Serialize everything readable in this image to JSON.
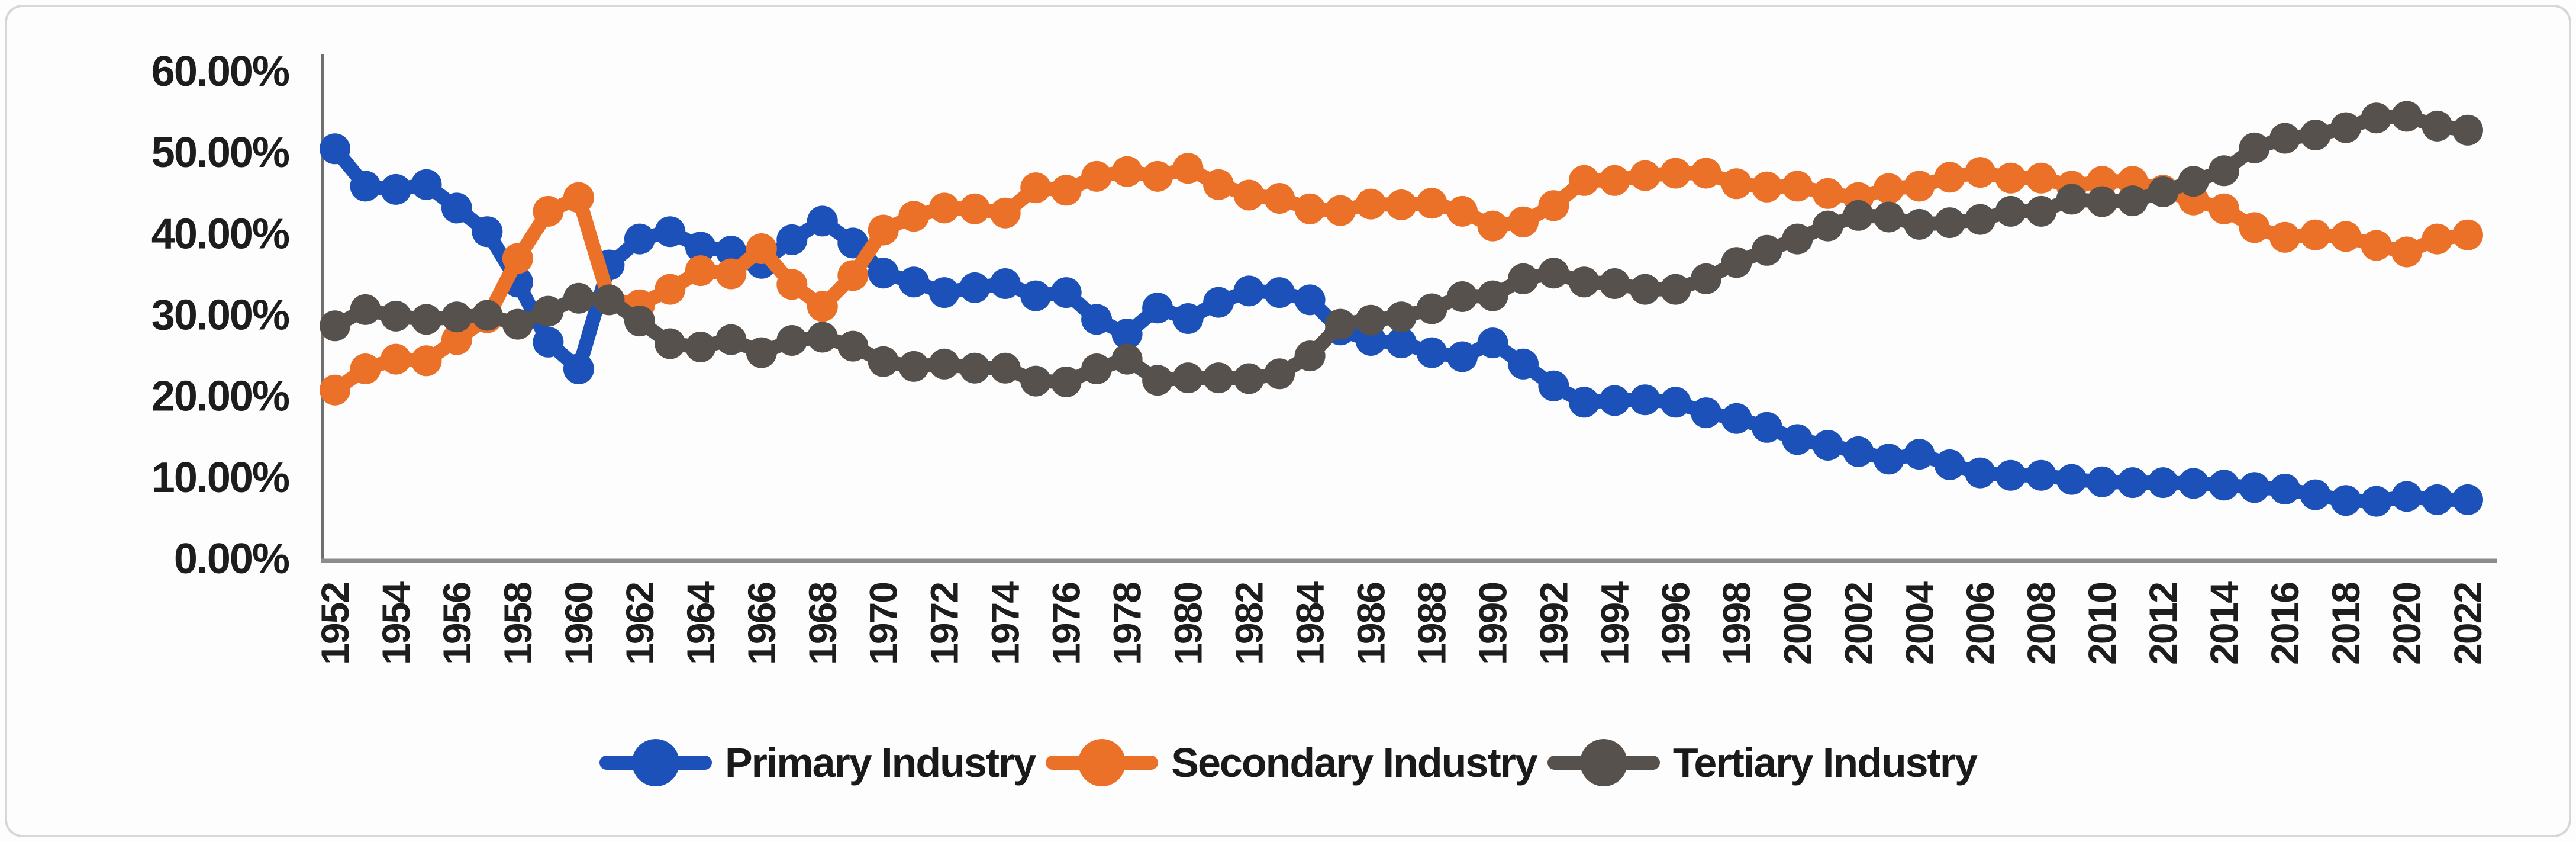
{
  "figure": {
    "background_color": "#fdfdfd",
    "border_color": "#d7d7d4"
  },
  "chart_data": {
    "type": "line",
    "title": "",
    "xlabel": "",
    "ylabel": "",
    "x": [
      1952,
      1953,
      1954,
      1955,
      1956,
      1957,
      1958,
      1959,
      1960,
      1961,
      1962,
      1963,
      1964,
      1965,
      1966,
      1967,
      1968,
      1969,
      1970,
      1971,
      1972,
      1973,
      1974,
      1975,
      1976,
      1977,
      1978,
      1979,
      1980,
      1981,
      1982,
      1983,
      1984,
      1985,
      1986,
      1987,
      1988,
      1989,
      1990,
      1991,
      1992,
      1993,
      1994,
      1995,
      1996,
      1997,
      1998,
      1999,
      2000,
      2001,
      2002,
      2003,
      2004,
      2005,
      2006,
      2007,
      2008,
      2009,
      2010,
      2011,
      2012,
      2013,
      2014,
      2015,
      2016,
      2017,
      2018,
      2019,
      2020,
      2021,
      2022
    ],
    "x_tick_step": 2,
    "x_tick_labels": [
      "1952",
      "1954",
      "1956",
      "1958",
      "1960",
      "1962",
      "1964",
      "1966",
      "1968",
      "1970",
      "1972",
      "1974",
      "1976",
      "1978",
      "1980",
      "1982",
      "1984",
      "1986",
      "1988",
      "1990",
      "1992",
      "1994",
      "1996",
      "1998",
      "2000",
      "2002",
      "2004",
      "2006",
      "2008",
      "2010",
      "2012",
      "2014",
      "2016",
      "2018",
      "2020",
      "2022"
    ],
    "ylim": [
      0,
      60
    ],
    "y_tick_step": 10,
    "y_tick_labels": [
      "0.00%",
      "10.00%",
      "20.00%",
      "30.00%",
      "40.00%",
      "50.00%",
      "60.00%"
    ],
    "grid": false,
    "legend_position": "bottom",
    "axis_color": "#8c8c8c",
    "tick_label_color": "#1d1d1d",
    "series": [
      {
        "name": "Primary Industry",
        "color": "#1b51b8",
        "values": [
          50.5,
          45.9,
          45.5,
          46.1,
          43.2,
          40.3,
          34.1,
          26.7,
          23.4,
          36.2,
          39.4,
          40.3,
          38.4,
          37.9,
          36.4,
          39.3,
          41.6,
          38.9,
          35.2,
          34.1,
          32.8,
          33.4,
          33.9,
          32.4,
          32.8,
          29.5,
          27.7,
          30.9,
          29.6,
          31.6,
          33.0,
          32.8,
          31.9,
          28.2,
          26.9,
          26.6,
          25.4,
          24.9,
          26.6,
          24.0,
          21.3,
          19.3,
          19.5,
          19.6,
          19.3,
          18.0,
          17.3,
          16.2,
          14.7,
          14.0,
          13.2,
          12.3,
          12.9,
          11.6,
          10.6,
          10.3,
          10.3,
          9.8,
          9.5,
          9.4,
          9.4,
          9.3,
          9.1,
          8.8,
          8.6,
          7.9,
          7.2,
          7.1,
          7.7,
          7.3,
          7.3
        ]
      },
      {
        "name": "Secondary Industry",
        "color": "#ec7128",
        "values": [
          20.8,
          23.4,
          24.6,
          24.4,
          27.0,
          29.7,
          37.0,
          42.8,
          44.5,
          31.9,
          31.3,
          33.2,
          35.5,
          35.1,
          38.2,
          33.8,
          31.1,
          34.9,
          40.5,
          42.2,
          43.2,
          43.1,
          42.6,
          45.7,
          45.4,
          47.1,
          47.7,
          47.1,
          48.1,
          46.1,
          44.8,
          44.4,
          43.1,
          42.9,
          43.7,
          43.6,
          43.8,
          42.8,
          41.0,
          41.5,
          43.5,
          46.6,
          46.6,
          47.2,
          47.5,
          47.5,
          46.2,
          45.8,
          45.9,
          45.0,
          44.5,
          45.6,
          45.9,
          47.0,
          47.6,
          46.9,
          46.9,
          45.9,
          46.5,
          46.5,
          45.4,
          44.2,
          43.1,
          40.8,
          39.6,
          39.9,
          39.7,
          38.6,
          37.8,
          39.4,
          39.9
        ]
      },
      {
        "name": "Tertiary Industry",
        "color": "#57514e",
        "values": [
          28.7,
          30.7,
          29.9,
          29.5,
          29.8,
          30.0,
          28.9,
          30.5,
          32.1,
          31.9,
          29.3,
          26.5,
          26.1,
          27.0,
          25.4,
          26.9,
          27.3,
          26.2,
          24.3,
          23.7,
          24.0,
          23.5,
          23.5,
          21.9,
          21.8,
          23.4,
          24.6,
          22.0,
          22.3,
          22.3,
          22.2,
          22.8,
          25.0,
          28.9,
          29.4,
          29.8,
          30.8,
          32.3,
          32.4,
          34.5,
          35.2,
          34.1,
          33.9,
          33.2,
          33.2,
          34.5,
          36.5,
          38.0,
          39.4,
          41.0,
          42.3,
          42.1,
          41.2,
          41.4,
          41.8,
          42.8,
          42.8,
          44.3,
          44.0,
          44.1,
          45.2,
          46.5,
          47.8,
          50.6,
          51.8,
          52.2,
          53.1,
          54.3,
          54.5,
          53.3,
          52.8
        ]
      }
    ]
  }
}
